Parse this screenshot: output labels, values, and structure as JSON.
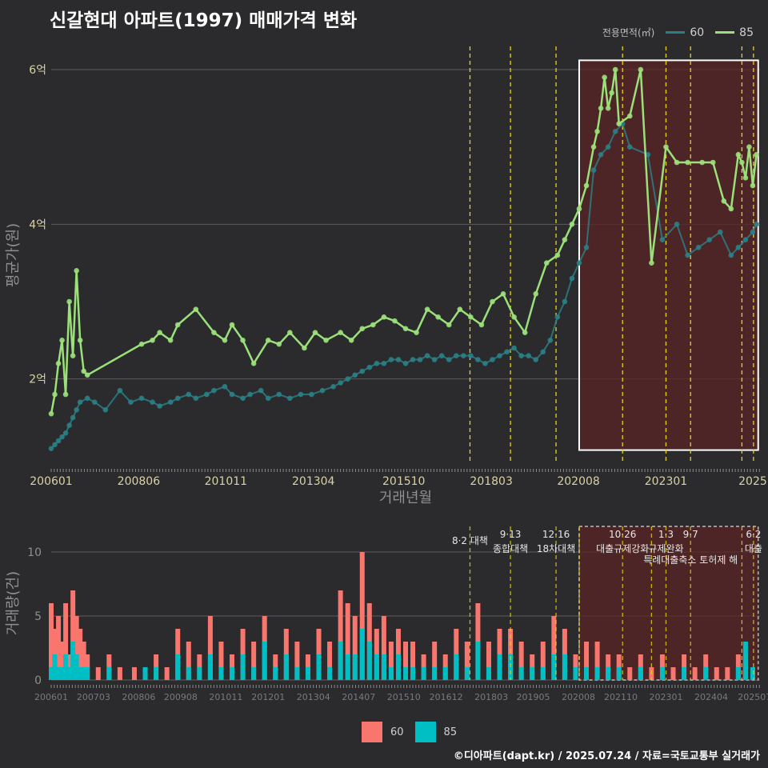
{
  "page": {
    "title": "신갈현대 아파트(1997) 매매가격 변화",
    "footer": "©디아파트(dapt.kr) / 2025.07.24 / 자료=국토교통부 실거래가"
  },
  "colors": {
    "background": "#2b2b2d",
    "grid": "#5c5c5c",
    "line60": "#2a7f86",
    "line85": "#9be07a",
    "bar60": "#f8766d",
    "bar85": "#00bfc4",
    "policy": "#e8d21a",
    "highlight": "#5a2424"
  },
  "chart_data": [
    {
      "type": "line",
      "title": "신갈현대 아파트(1997) 매매가격 변화",
      "xlabel": "거래년월",
      "ylabel": "평균가(원)",
      "legend_title": "전용면적(㎡)",
      "legend_position": "top-right",
      "x_ticks": [
        "200601",
        "200806",
        "201011",
        "201304",
        "201510",
        "201803",
        "202008",
        "202301",
        "2025"
      ],
      "y_ticks": [
        {
          "value": 2,
          "label": "2억"
        },
        {
          "value": 4,
          "label": "4억"
        },
        {
          "value": 6,
          "label": "6억"
        }
      ],
      "ylim": [
        0.9,
        6.3
      ],
      "xlim": [
        2006.0,
        2025.6
      ],
      "highlight_range": [
        2020.6,
        2025.55
      ],
      "highlight_y": [
        1.08,
        6.12
      ],
      "policy_lines": [
        2017.58,
        2018.7,
        2019.96,
        2021.8,
        2023.0,
        2023.68,
        2025.1,
        2025.42
      ],
      "series": [
        {
          "name": "60",
          "x": [
            2006.0,
            2006.1,
            2006.2,
            2006.3,
            2006.4,
            2006.5,
            2006.6,
            2006.7,
            2006.8,
            2007.0,
            2007.2,
            2007.5,
            2007.9,
            2008.2,
            2008.5,
            2008.8,
            2009.0,
            2009.3,
            2009.5,
            2009.8,
            2010.0,
            2010.3,
            2010.5,
            2010.8,
            2011.0,
            2011.3,
            2011.5,
            2011.8,
            2012.0,
            2012.3,
            2012.6,
            2012.9,
            2013.2,
            2013.5,
            2013.8,
            2014.0,
            2014.2,
            2014.4,
            2014.6,
            2014.8,
            2015.0,
            2015.2,
            2015.4,
            2015.6,
            2015.8,
            2016.0,
            2016.2,
            2016.4,
            2016.6,
            2016.8,
            2017.0,
            2017.2,
            2017.4,
            2017.6,
            2017.8,
            2018.0,
            2018.2,
            2018.4,
            2018.6,
            2018.8,
            2019.0,
            2019.2,
            2019.4,
            2019.6,
            2019.8,
            2020.0,
            2020.2,
            2020.4,
            2020.6,
            2020.8,
            2021.0,
            2021.2,
            2021.4,
            2021.6,
            2021.8,
            2022.0,
            2022.5,
            2022.9,
            2023.3,
            2023.6,
            2023.9,
            2024.2,
            2024.5,
            2024.8,
            2025.0,
            2025.2,
            2025.4,
            2025.5
          ],
          "values": [
            1.1,
            1.15,
            1.2,
            1.25,
            1.3,
            1.4,
            1.5,
            1.6,
            1.7,
            1.75,
            1.7,
            1.6,
            1.85,
            1.7,
            1.75,
            1.7,
            1.65,
            1.7,
            1.75,
            1.8,
            1.75,
            1.8,
            1.85,
            1.9,
            1.8,
            1.75,
            1.8,
            1.85,
            1.75,
            1.8,
            1.75,
            1.8,
            1.8,
            1.85,
            1.9,
            1.95,
            2.0,
            2.05,
            2.1,
            2.15,
            2.2,
            2.2,
            2.25,
            2.25,
            2.2,
            2.25,
            2.25,
            2.3,
            2.25,
            2.3,
            2.25,
            2.3,
            2.3,
            2.3,
            2.25,
            2.2,
            2.25,
            2.3,
            2.35,
            2.4,
            2.3,
            2.3,
            2.25,
            2.35,
            2.5,
            2.8,
            3.0,
            3.3,
            3.5,
            3.7,
            4.7,
            4.9,
            5.0,
            5.2,
            5.3,
            5.0,
            4.9,
            3.8,
            4.0,
            3.6,
            3.7,
            3.8,
            3.9,
            3.6,
            3.7,
            3.8,
            3.9,
            4.0
          ]
        },
        {
          "name": "85",
          "x": [
            2006.0,
            2006.1,
            2006.2,
            2006.3,
            2006.4,
            2006.5,
            2006.6,
            2006.7,
            2006.8,
            2006.9,
            2007.0,
            2008.5,
            2008.8,
            2009.0,
            2009.3,
            2009.5,
            2010.0,
            2010.5,
            2010.8,
            2011.0,
            2011.3,
            2011.6,
            2012.0,
            2012.3,
            2012.6,
            2013.0,
            2013.3,
            2013.6,
            2014.0,
            2014.3,
            2014.6,
            2014.9,
            2015.2,
            2015.5,
            2015.8,
            2016.1,
            2016.4,
            2016.7,
            2017.0,
            2017.3,
            2017.6,
            2017.9,
            2018.2,
            2018.5,
            2018.8,
            2019.1,
            2019.4,
            2019.7,
            2020.0,
            2020.2,
            2020.4,
            2020.6,
            2020.8,
            2021.0,
            2021.1,
            2021.2,
            2021.3,
            2021.4,
            2021.5,
            2021.6,
            2021.7,
            2022.0,
            2022.3,
            2022.6,
            2023.0,
            2023.3,
            2023.6,
            2024.0,
            2024.3,
            2024.6,
            2024.8,
            2025.0,
            2025.1,
            2025.2,
            2025.3,
            2025.4,
            2025.5
          ],
          "values": [
            1.55,
            1.8,
            2.2,
            2.5,
            1.8,
            3.0,
            2.3,
            3.4,
            2.5,
            2.1,
            2.05,
            2.45,
            2.5,
            2.6,
            2.5,
            2.7,
            2.9,
            2.6,
            2.5,
            2.7,
            2.5,
            2.2,
            2.5,
            2.45,
            2.6,
            2.4,
            2.6,
            2.5,
            2.6,
            2.5,
            2.65,
            2.7,
            2.8,
            2.75,
            2.65,
            2.6,
            2.9,
            2.8,
            2.7,
            2.9,
            2.8,
            2.7,
            3.0,
            3.1,
            2.8,
            2.6,
            3.1,
            3.5,
            3.6,
            3.8,
            4.0,
            4.2,
            4.5,
            5.0,
            5.2,
            5.5,
            5.9,
            5.5,
            5.7,
            6.0,
            5.3,
            5.4,
            6.0,
            3.5,
            5.0,
            4.8,
            4.8,
            4.8,
            4.8,
            4.3,
            4.2,
            4.9,
            4.8,
            4.6,
            5.0,
            4.5,
            4.9
          ]
        }
      ]
    },
    {
      "type": "bar",
      "xlabel": "",
      "ylabel": "거래량(건)",
      "legend_position": "bottom",
      "x_ticks": [
        "200601",
        "200703",
        "200806",
        "200908",
        "201011",
        "201201",
        "201304",
        "201407",
        "201510",
        "201612",
        "201803",
        "201905",
        "202008",
        "202110",
        "202301",
        "202404",
        "202507"
      ],
      "y_ticks": [
        0,
        5,
        10
      ],
      "ylim": [
        0,
        12
      ],
      "xlim": [
        2006.0,
        2025.6
      ],
      "highlight_range": [
        2020.6,
        2025.55
      ],
      "policy_lines": [
        2017.58,
        2018.7,
        2019.96,
        2020.6,
        2021.8,
        2022.6,
        2023.0,
        2023.68,
        2025.1,
        2025.42
      ],
      "annotations": [
        {
          "date": "8·2",
          "text": "8·2 대책",
          "x": 2017.58
        },
        {
          "date": "9·13",
          "text": "종합대책",
          "x": 2018.7
        },
        {
          "date": "12·16",
          "text": "18차대책",
          "x": 2019.96
        },
        {
          "date": "10·26",
          "text": "대출규제강화",
          "x": 2021.8
        },
        {
          "date": "1·3",
          "text": "규제완화",
          "x": 2023.0
        },
        {
          "date": "9·7",
          "text": "특례대출축소 토허제 해",
          "x": 2023.68
        },
        {
          "date": "6·2",
          "text": "대출",
          "x": 2025.42
        }
      ],
      "series": [
        {
          "name": "60",
          "x": [
            2006.0,
            2006.1,
            2006.2,
            2006.3,
            2006.4,
            2006.5,
            2006.6,
            2006.7,
            2006.8,
            2006.9,
            2007.0,
            2007.3,
            2007.6,
            2007.9,
            2008.3,
            2008.6,
            2008.9,
            2009.2,
            2009.5,
            2009.8,
            2010.1,
            2010.4,
            2010.7,
            2011.0,
            2011.3,
            2011.6,
            2011.9,
            2012.2,
            2012.5,
            2012.8,
            2013.1,
            2013.4,
            2013.7,
            2014.0,
            2014.2,
            2014.4,
            2014.6,
            2014.8,
            2015.0,
            2015.2,
            2015.4,
            2015.6,
            2015.8,
            2016.0,
            2016.3,
            2016.6,
            2016.9,
            2017.2,
            2017.5,
            2017.8,
            2018.1,
            2018.4,
            2018.7,
            2019.0,
            2019.3,
            2019.6,
            2019.9,
            2020.2,
            2020.5,
            2020.8,
            2021.1,
            2021.4,
            2021.7,
            2022.0,
            2022.3,
            2022.6,
            2022.9,
            2023.2,
            2023.5,
            2023.8,
            2024.1,
            2024.4,
            2024.7,
            2025.0,
            2025.2,
            2025.4
          ],
          "values": [
            6,
            4,
            5,
            3,
            6,
            2,
            7,
            5,
            4,
            3,
            2,
            1,
            2,
            1,
            1,
            1,
            2,
            1,
            4,
            3,
            2,
            5,
            3,
            2,
            4,
            3,
            5,
            2,
            4,
            3,
            2,
            4,
            3,
            7,
            6,
            5,
            10,
            6,
            4,
            5,
            3,
            4,
            3,
            3,
            2,
            3,
            2,
            4,
            3,
            6,
            3,
            4,
            4,
            3,
            2,
            3,
            5,
            4,
            2,
            3,
            3,
            2,
            2,
            1,
            2,
            1,
            2,
            1,
            2,
            1,
            2,
            1,
            1,
            2,
            2,
            1
          ]
        },
        {
          "name": "85",
          "x": [
            2006.0,
            2006.1,
            2006.2,
            2006.3,
            2006.4,
            2006.5,
            2006.6,
            2006.7,
            2006.8,
            2006.9,
            2007.0,
            2007.3,
            2007.6,
            2007.9,
            2008.3,
            2008.6,
            2008.9,
            2009.2,
            2009.5,
            2009.8,
            2010.1,
            2010.4,
            2010.7,
            2011.0,
            2011.3,
            2011.6,
            2011.9,
            2012.2,
            2012.5,
            2012.8,
            2013.1,
            2013.4,
            2013.7,
            2014.0,
            2014.2,
            2014.4,
            2014.6,
            2014.8,
            2015.0,
            2015.2,
            2015.4,
            2015.6,
            2015.8,
            2016.0,
            2016.3,
            2016.6,
            2016.9,
            2017.2,
            2017.5,
            2017.8,
            2018.1,
            2018.4,
            2018.7,
            2019.0,
            2019.3,
            2019.6,
            2019.9,
            2020.2,
            2020.5,
            2020.8,
            2021.1,
            2021.4,
            2021.7,
            2022.0,
            2022.3,
            2022.6,
            2022.9,
            2023.2,
            2023.5,
            2023.8,
            2024.1,
            2024.4,
            2024.7,
            2025.0,
            2025.2,
            2025.4
          ],
          "values": [
            1,
            2,
            1,
            1,
            2,
            1,
            3,
            2,
            1,
            1,
            1,
            0,
            1,
            0,
            0,
            1,
            1,
            0,
            2,
            1,
            1,
            2,
            1,
            1,
            2,
            1,
            3,
            1,
            2,
            1,
            1,
            2,
            1,
            3,
            2,
            2,
            4,
            3,
            2,
            2,
            1,
            2,
            1,
            1,
            1,
            1,
            1,
            2,
            1,
            3,
            1,
            2,
            2,
            1,
            1,
            1,
            2,
            2,
            1,
            1,
            1,
            1,
            1,
            0,
            1,
            0,
            1,
            0,
            1,
            0,
            1,
            0,
            0,
            1,
            3,
            1
          ]
        }
      ]
    }
  ]
}
